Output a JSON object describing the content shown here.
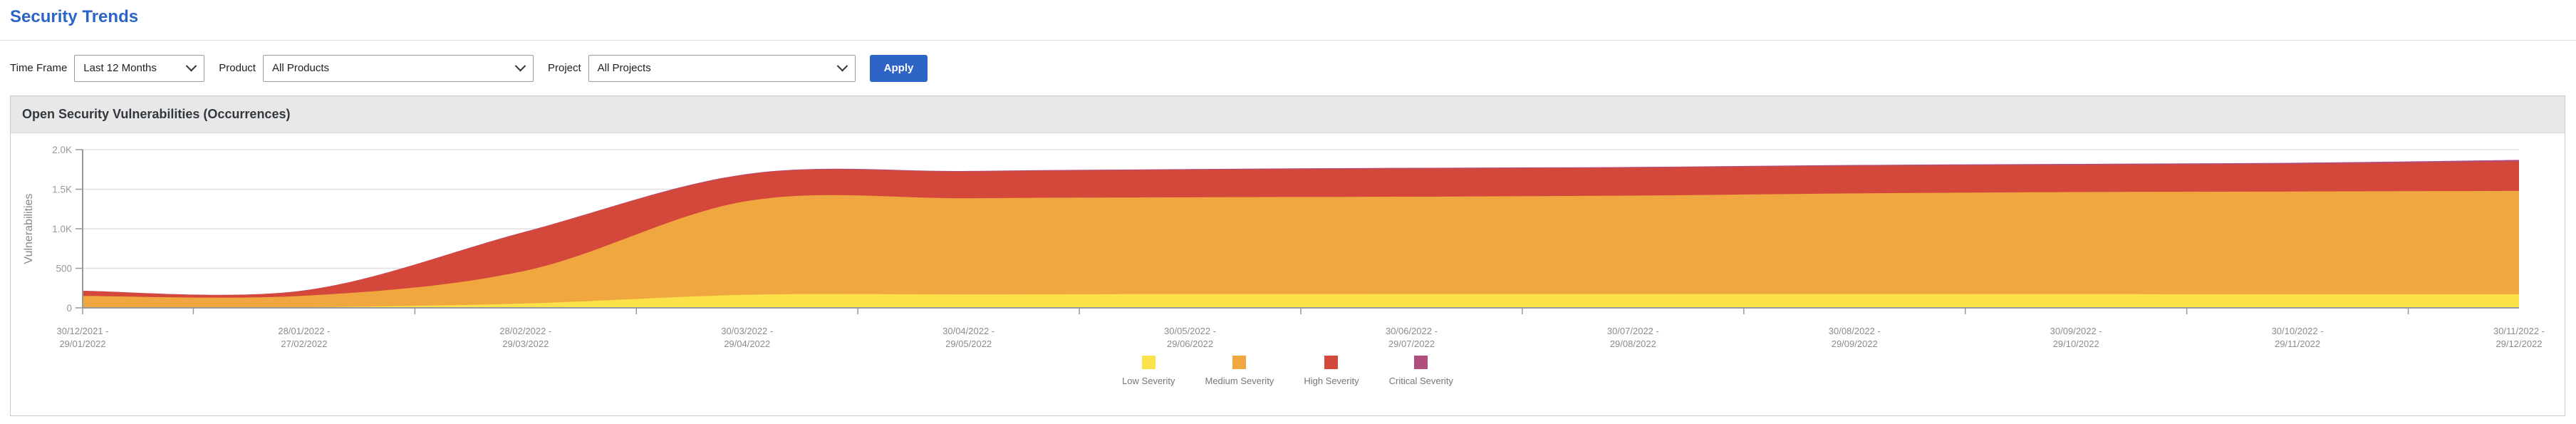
{
  "page": {
    "title": "Security Trends"
  },
  "theme": {
    "title_blue": "#2b65c7",
    "accent_blue": "#2e64c6",
    "panel_header_bg": "#e8e8e8",
    "axis_text_gray": "#999999",
    "grid_gray": "#e0e0e0"
  },
  "filters": {
    "time_frame": {
      "label": "Time Frame",
      "value": "Last 12 Months"
    },
    "product": {
      "label": "Product",
      "value": "All Products"
    },
    "project": {
      "label": "Project",
      "value": "All Projects"
    },
    "apply_label": "Apply"
  },
  "panel": {
    "title": "Open Security Vulnerabilities (Occurrences)"
  },
  "chart_data": {
    "type": "area",
    "stacked": true,
    "title": "Open Security Vulnerabilities (Occurrences)",
    "xlabel": "",
    "ylabel": "Vulnerabilities",
    "ylim": [
      0,
      2000
    ],
    "ytick_values": [
      0,
      500,
      1000,
      1500,
      2000
    ],
    "ytick_labels": [
      "0",
      "500",
      "1.0K",
      "1.5K",
      "2.0K"
    ],
    "grid": true,
    "legend_position": "bottom",
    "categories": [
      "30/12/2021 - 29/01/2022",
      "28/01/2022 - 27/02/2022",
      "28/02/2022 - 29/03/2022",
      "30/03/2022 - 29/04/2022",
      "30/04/2022 - 29/05/2022",
      "30/05/2022 - 29/06/2022",
      "30/06/2022 - 29/07/2022",
      "30/07/2022 - 29/08/2022",
      "30/08/2022 - 29/09/2022",
      "30/09/2022 - 29/10/2022",
      "30/10/2022 - 29/11/2022",
      "30/11/2022 - 29/12/2022"
    ],
    "series": [
      {
        "name": "Low Severity",
        "color": "#fbe24b",
        "values": [
          5,
          8,
          55,
          165,
          170,
          173,
          174,
          175,
          175,
          173,
          172,
          172
        ]
      },
      {
        "name": "Medium Severity",
        "color": "#f1a73f",
        "values": [
          145,
          145,
          415,
          1185,
          1215,
          1225,
          1231,
          1244,
          1272,
          1291,
          1299,
          1307
        ]
      },
      {
        "name": "High Severity",
        "color": "#d4483b",
        "values": [
          63,
          66,
          490,
          335,
          337,
          347,
          355,
          352,
          347,
          342,
          348,
          371
        ]
      },
      {
        "name": "Critical Severity",
        "color": "#b04f7d",
        "values": [
          2,
          2,
          5,
          8,
          9,
          10,
          10,
          10,
          12,
          14,
          16,
          20
        ]
      }
    ]
  }
}
